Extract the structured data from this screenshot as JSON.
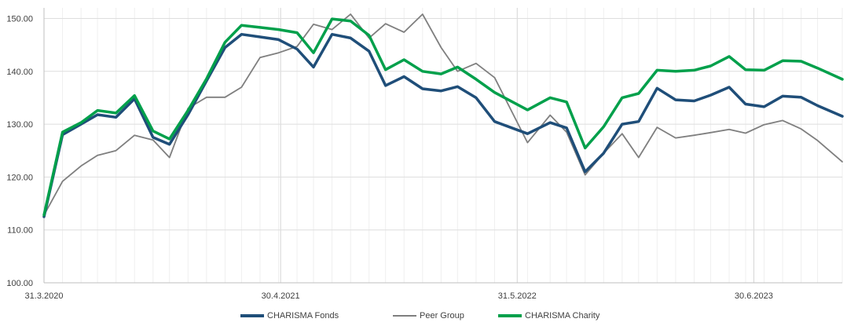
{
  "chart_data": {
    "type": "line",
    "title": "",
    "xlabel": "",
    "ylabel": "",
    "ylim": [
      100,
      152
    ],
    "xlim": [
      0,
      38.8
    ],
    "yticks": [
      100,
      110,
      120,
      130,
      140,
      150
    ],
    "ytick_labels": [
      "100.00",
      "110.00",
      "120.00",
      "130.00",
      "140.00",
      "150.00"
    ],
    "xtick_positions": [
      0,
      11.5,
      23,
      34.5
    ],
    "xtick_labels": [
      "31.3.2020",
      "30.4.2021",
      "31.5.2022",
      "30.6.2023"
    ],
    "grid": "horizontal and vertical",
    "legend_position": "bottom",
    "series": [
      {
        "name": "CHARISMA Fonds",
        "color": "#1f4e79",
        "x": [
          0,
          0.9,
          1.8,
          2.6,
          3.5,
          4.4,
          5.3,
          6.1,
          7.0,
          7.9,
          8.8,
          9.6,
          10.5,
          11.4,
          12.3,
          13.1,
          14.0,
          14.9,
          15.8,
          16.6,
          17.5,
          18.4,
          19.3,
          20.1,
          21.0,
          21.9,
          23.5,
          24.6,
          25.4,
          26.3,
          27.2,
          28.1,
          28.9,
          29.8,
          30.7,
          31.6,
          32.4,
          33.3,
          34.1,
          35.0,
          35.9,
          36.8,
          37.6,
          38.8
        ],
        "values": [
          112.5,
          128.0,
          130.0,
          131.8,
          131.3,
          134.8,
          127.5,
          126.2,
          131.8,
          138.2,
          144.5,
          147.0,
          146.5,
          146.0,
          144.2,
          140.8,
          147.0,
          146.3,
          143.8,
          137.3,
          139.0,
          136.7,
          136.3,
          137.1,
          135.0,
          130.5,
          128.2,
          130.3,
          129.3,
          121.0,
          124.5,
          130.0,
          130.5,
          136.8,
          134.6,
          134.4,
          135.5,
          137.0,
          133.8,
          133.3,
          135.3,
          135.1,
          133.5,
          131.5
        ]
      },
      {
        "name": "Peer Group",
        "color": "#7f7f7f",
        "x": [
          0,
          0.9,
          1.8,
          2.6,
          3.5,
          4.4,
          5.3,
          6.1,
          7.0,
          7.9,
          8.8,
          9.6,
          10.5,
          11.4,
          12.3,
          13.1,
          14.0,
          14.9,
          15.8,
          16.6,
          17.5,
          18.4,
          19.3,
          20.1,
          21.0,
          21.9,
          23.5,
          24.6,
          25.4,
          26.3,
          27.2,
          28.1,
          28.9,
          29.8,
          30.7,
          31.6,
          32.4,
          33.3,
          34.1,
          35.0,
          35.9,
          36.8,
          37.6,
          38.8
        ],
        "values": [
          112.8,
          119.2,
          122.1,
          124.1,
          125.0,
          127.9,
          127.0,
          123.7,
          133.0,
          135.1,
          135.1,
          137.0,
          142.6,
          143.5,
          144.7,
          148.9,
          147.9,
          150.8,
          146.3,
          149.0,
          147.4,
          150.8,
          144.5,
          140.0,
          141.5,
          138.8,
          126.5,
          131.7,
          128.5,
          120.4,
          124.5,
          128.2,
          123.7,
          129.4,
          127.4,
          127.9,
          128.4,
          129.0,
          128.3,
          129.9,
          130.7,
          129.1,
          126.9,
          122.9
        ]
      },
      {
        "name": "CHARISMA Charity",
        "color": "#00a04b",
        "x": [
          0,
          0.9,
          1.8,
          2.6,
          3.5,
          4.4,
          5.3,
          6.1,
          7.0,
          7.9,
          8.8,
          9.6,
          10.5,
          11.4,
          12.3,
          13.1,
          14.0,
          14.9,
          15.8,
          16.6,
          17.5,
          18.4,
          19.3,
          20.1,
          21.0,
          21.9,
          23.5,
          24.6,
          25.4,
          26.3,
          27.2,
          28.1,
          28.9,
          29.8,
          30.7,
          31.6,
          32.4,
          33.3,
          34.1,
          35.0,
          35.9,
          36.8,
          37.6,
          38.8
        ],
        "values": [
          112.8,
          128.5,
          130.3,
          132.6,
          132.1,
          135.4,
          128.7,
          127.2,
          132.6,
          138.6,
          145.5,
          148.7,
          148.3,
          147.9,
          147.3,
          143.5,
          149.9,
          149.5,
          146.8,
          140.3,
          142.2,
          140.0,
          139.5,
          140.8,
          138.5,
          136.0,
          132.7,
          135.0,
          134.2,
          125.5,
          129.5,
          135.0,
          135.8,
          140.2,
          140.0,
          140.2,
          141.0,
          142.8,
          140.3,
          140.2,
          142.0,
          141.9,
          140.6,
          138.5
        ]
      }
    ]
  }
}
